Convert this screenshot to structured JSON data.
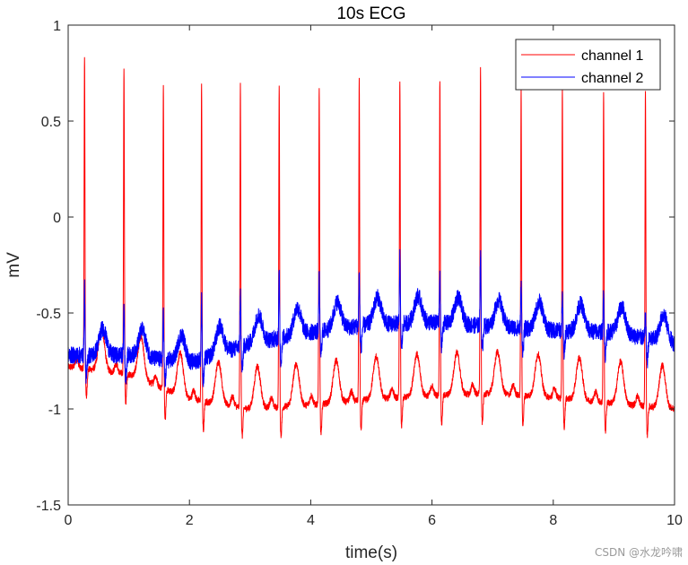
{
  "chart_data": {
    "type": "line",
    "title": "10s ECG",
    "xlabel": "time(s)",
    "ylabel": "mV",
    "xlim": [
      0,
      10
    ],
    "ylim": [
      -1.5,
      1
    ],
    "x_ticks": [
      "0",
      "2",
      "4",
      "6",
      "8",
      "10"
    ],
    "y_ticks": [
      "-1.5",
      "-1",
      "-0.5",
      "0",
      "0.5",
      "1"
    ],
    "x_tick_values": [
      0,
      2,
      4,
      6,
      8,
      10
    ],
    "y_tick_values": [
      -1.5,
      -1,
      -0.5,
      0,
      0.5,
      1
    ],
    "grid": false,
    "legend": {
      "position": "top-right",
      "entries": [
        "channel 1",
        "channel 2"
      ]
    },
    "series": [
      {
        "name": "channel 1",
        "color": "#ff0000",
        "r_peak_times": [
          0.27,
          0.92,
          1.57,
          2.2,
          2.84,
          3.48,
          4.14,
          4.8,
          5.47,
          6.13,
          6.8,
          7.47,
          8.15,
          8.83,
          9.52
        ],
        "r_peak_values": [
          0.85,
          0.79,
          0.71,
          0.7,
          0.69,
          0.7,
          0.69,
          0.72,
          0.73,
          0.73,
          0.79,
          0.67,
          0.67,
          0.66,
          0.67
        ],
        "baseline": [
          [
            0,
            -0.78
          ],
          [
            1,
            -0.82
          ],
          [
            2,
            -0.95
          ],
          [
            3,
            -1.0
          ],
          [
            4,
            -0.98
          ],
          [
            5,
            -0.95
          ],
          [
            6,
            -0.93
          ],
          [
            7,
            -0.92
          ],
          [
            8,
            -0.94
          ],
          [
            9,
            -0.97
          ],
          [
            10,
            -1.0
          ]
        ],
        "min_approx": -1.22
      },
      {
        "name": "channel 2",
        "color": "#0000ff",
        "r_peak_times": [
          0.27,
          0.92,
          1.57,
          2.2,
          2.84,
          3.48,
          4.14,
          4.8,
          5.47,
          6.13,
          6.8,
          7.47,
          8.15,
          8.83,
          9.52
        ],
        "r_peak_values": [
          -0.35,
          -0.45,
          -0.48,
          -0.42,
          -0.38,
          -0.28,
          -0.3,
          -0.28,
          -0.2,
          -0.3,
          -0.18,
          -0.35,
          -0.4,
          -0.4,
          -0.5
        ],
        "baseline": [
          [
            0,
            -0.72
          ],
          [
            1,
            -0.72
          ],
          [
            2,
            -0.76
          ],
          [
            3,
            -0.66
          ],
          [
            4,
            -0.6
          ],
          [
            5,
            -0.56
          ],
          [
            6,
            -0.55
          ],
          [
            7,
            -0.57
          ],
          [
            8,
            -0.59
          ],
          [
            9,
            -0.6
          ],
          [
            10,
            -0.66
          ]
        ]
      }
    ]
  },
  "watermark": "CSDN @水龙吟啸"
}
